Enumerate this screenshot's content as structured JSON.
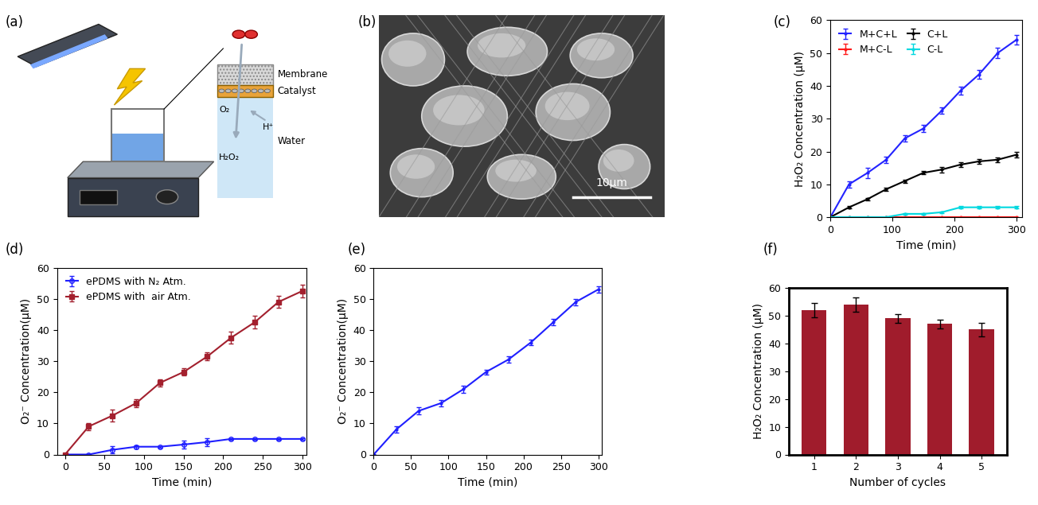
{
  "diagram": {
    "label": "(a)",
    "layers": [
      "Membrane",
      "Catalyst",
      "Water"
    ],
    "species": [
      "O₂",
      "H⁺",
      "H₂O₂"
    ]
  },
  "image": {
    "label": "(b)",
    "scale_bar": "10μm"
  },
  "chart_data": [
    {
      "type": "line",
      "title": "(c)",
      "x_label": "Time (min)",
      "y_label": "H₂O₂ Concentration (μM)",
      "x": [
        0,
        30,
        60,
        90,
        120,
        150,
        180,
        210,
        240,
        270,
        300
      ],
      "xlim": [
        0,
        310
      ],
      "xticks": [
        0,
        100,
        200,
        300
      ],
      "ylim": [
        0,
        60
      ],
      "yticks": [
        0,
        10,
        20,
        30,
        40,
        50,
        60
      ],
      "legend": "upper left",
      "series": [
        {
          "name": "M+C+L",
          "color": "#2323ff",
          "marker": ".",
          "line_style": "solid",
          "values": [
            0,
            10,
            13.5,
            17.5,
            24,
            27,
            32.5,
            38.5,
            43.5,
            50,
            54
          ],
          "errors": [
            0.3,
            1,
            1.5,
            1,
            1,
            1,
            1,
            1.2,
            1.3,
            1.5,
            1.5
          ]
        },
        {
          "name": "C+L",
          "color": "#000000",
          "marker": ".",
          "line_style": "solid",
          "values": [
            0,
            3,
            5.5,
            8.5,
            11,
            13.5,
            14.5,
            16,
            17,
            17.5,
            19
          ],
          "errors": [
            0.2,
            0.4,
            0.4,
            0.5,
            0.5,
            0.5,
            0.8,
            0.8,
            0.8,
            0.8,
            0.9
          ]
        },
        {
          "name": "M+C-L",
          "color": "#ff1a1a",
          "marker": ".",
          "line_style": "solid",
          "values": [
            0,
            0,
            0,
            0,
            0,
            0,
            0,
            0,
            0,
            0,
            0
          ],
          "errors": [
            0.1,
            0.1,
            0.1,
            0.1,
            0.1,
            0.1,
            0.1,
            0.1,
            0.1,
            0.1,
            0.1
          ]
        },
        {
          "name": "C-L",
          "color": "#00d8e0",
          "marker": ".",
          "line_style": "solid",
          "values": [
            0,
            0,
            0,
            0,
            1,
            1,
            1.5,
            3,
            3,
            3,
            3
          ],
          "errors": [
            0.1,
            0.1,
            0.1,
            0.1,
            0.3,
            0.3,
            0.3,
            0.3,
            0.3,
            0.3,
            0.3
          ]
        }
      ]
    },
    {
      "type": "line",
      "title": "(d)",
      "x_label": "Time (min)",
      "y_label": "O₂⁻ Concentration(μM)",
      "x": [
        0,
        30,
        60,
        90,
        120,
        150,
        180,
        210,
        240,
        270,
        300
      ],
      "xlim": [
        -10,
        305
      ],
      "xticks": [
        0,
        50,
        100,
        150,
        200,
        250,
        300
      ],
      "ylim": [
        0,
        60
      ],
      "yticks": [
        0,
        10,
        20,
        30,
        40,
        50,
        60
      ],
      "legend": "upper left",
      "series": [
        {
          "name": "ePDMS with N₂ Atm.",
          "color": "#1f1fff",
          "marker": "o",
          "line_style": "solid",
          "values": [
            0,
            0,
            1.5,
            2.5,
            2.5,
            3.2,
            4,
            5,
            5,
            5,
            5
          ],
          "errors": [
            0.2,
            0.2,
            1.2,
            0.5,
            0.3,
            1.2,
            1.2,
            0.3,
            0.3,
            0.3,
            0.3
          ]
        },
        {
          "name": "ePDMS with  air Atm.",
          "color": "#a3202e",
          "marker": "s",
          "line_style": "solid",
          "values": [
            0,
            9,
            12.5,
            16.5,
            23,
            26.5,
            31.5,
            37.5,
            42.5,
            49,
            52.5
          ],
          "errors": [
            0.3,
            1.2,
            2,
            1.2,
            1.2,
            1.2,
            1.2,
            2,
            2,
            2,
            2
          ]
        }
      ]
    },
    {
      "type": "line",
      "title": "(e)",
      "x_label": "Time (min)",
      "y_label": "O₂⁻ Concentration(μM)",
      "x": [
        0,
        30,
        60,
        90,
        120,
        150,
        180,
        210,
        240,
        270,
        300
      ],
      "xlim": [
        0,
        305
      ],
      "xticks": [
        0,
        50,
        100,
        150,
        200,
        250,
        300
      ],
      "ylim": [
        0,
        60
      ],
      "yticks": [
        0,
        10,
        20,
        30,
        40,
        50,
        60
      ],
      "series": [
        {
          "color": "#1f1fff",
          "marker": ".",
          "line_style": "solid",
          "values": [
            0,
            8,
            14,
            16.5,
            21,
            26.5,
            30.5,
            36,
            42.5,
            49,
            53
          ],
          "errors": [
            0.2,
            1,
            1.2,
            1,
            1.2,
            0.8,
            1,
            1,
            1,
            1,
            1
          ]
        }
      ]
    },
    {
      "type": "bar",
      "title": "(f)",
      "x_label": "Number of cycles",
      "y_label": "H₂O₂ Concentration (μM)",
      "categories": [
        "1",
        "2",
        "3",
        "4",
        "5"
      ],
      "values": [
        52,
        54,
        49,
        47,
        45
      ],
      "errors": [
        2.5,
        2.5,
        1.5,
        1.5,
        2.5
      ],
      "color": "#a01c2c",
      "ylim": [
        0,
        60
      ],
      "yticks": [
        0,
        10,
        20,
        30,
        40,
        50,
        60
      ]
    }
  ]
}
